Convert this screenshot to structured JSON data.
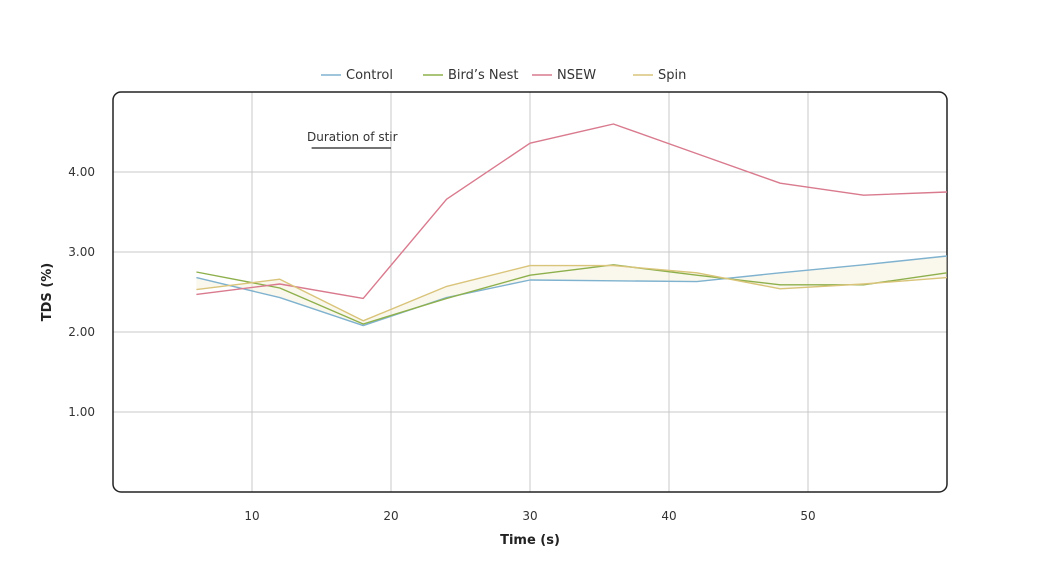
{
  "chart_data": {
    "type": "line",
    "xlabel": "Time (s)",
    "ylabel": "TDS (%)",
    "xlim": [
      0,
      60
    ],
    "ylim": [
      0,
      5
    ],
    "x_ticks": [
      10,
      20,
      30,
      40,
      50
    ],
    "y_ticks": [
      1.0,
      2.0,
      3.0,
      4.0
    ],
    "y_tick_labels": [
      "1.00",
      "2.00",
      "3.00",
      "4.00"
    ],
    "grid": true,
    "legend_position": "top-center",
    "annotation": {
      "text": "Duration of stir",
      "x_start": 14,
      "x_end": 20
    },
    "x": [
      6,
      12,
      18,
      24,
      30,
      36,
      42,
      48,
      54,
      60
    ],
    "series": [
      {
        "name": "Control",
        "color": "#7fb2cf",
        "values": [
          2.68,
          2.43,
          2.08,
          2.43,
          2.65,
          2.64,
          2.63,
          2.74,
          2.84,
          2.95
        ]
      },
      {
        "name": "Bird’s Nest",
        "color": "#8eb04c",
        "values": [
          2.75,
          2.55,
          2.1,
          2.42,
          2.71,
          2.84,
          2.71,
          2.59,
          2.59,
          2.74
        ]
      },
      {
        "name": "NSEW",
        "color": "#d97a8e",
        "values": [
          2.47,
          2.6,
          2.42,
          3.66,
          4.36,
          4.6,
          4.23,
          3.86,
          3.71,
          3.75
        ]
      },
      {
        "name": "Spin",
        "color": "#d9c47a",
        "values": [
          2.53,
          2.66,
          2.14,
          2.57,
          2.83,
          2.83,
          2.74,
          2.54,
          2.6,
          2.68
        ]
      }
    ]
  }
}
